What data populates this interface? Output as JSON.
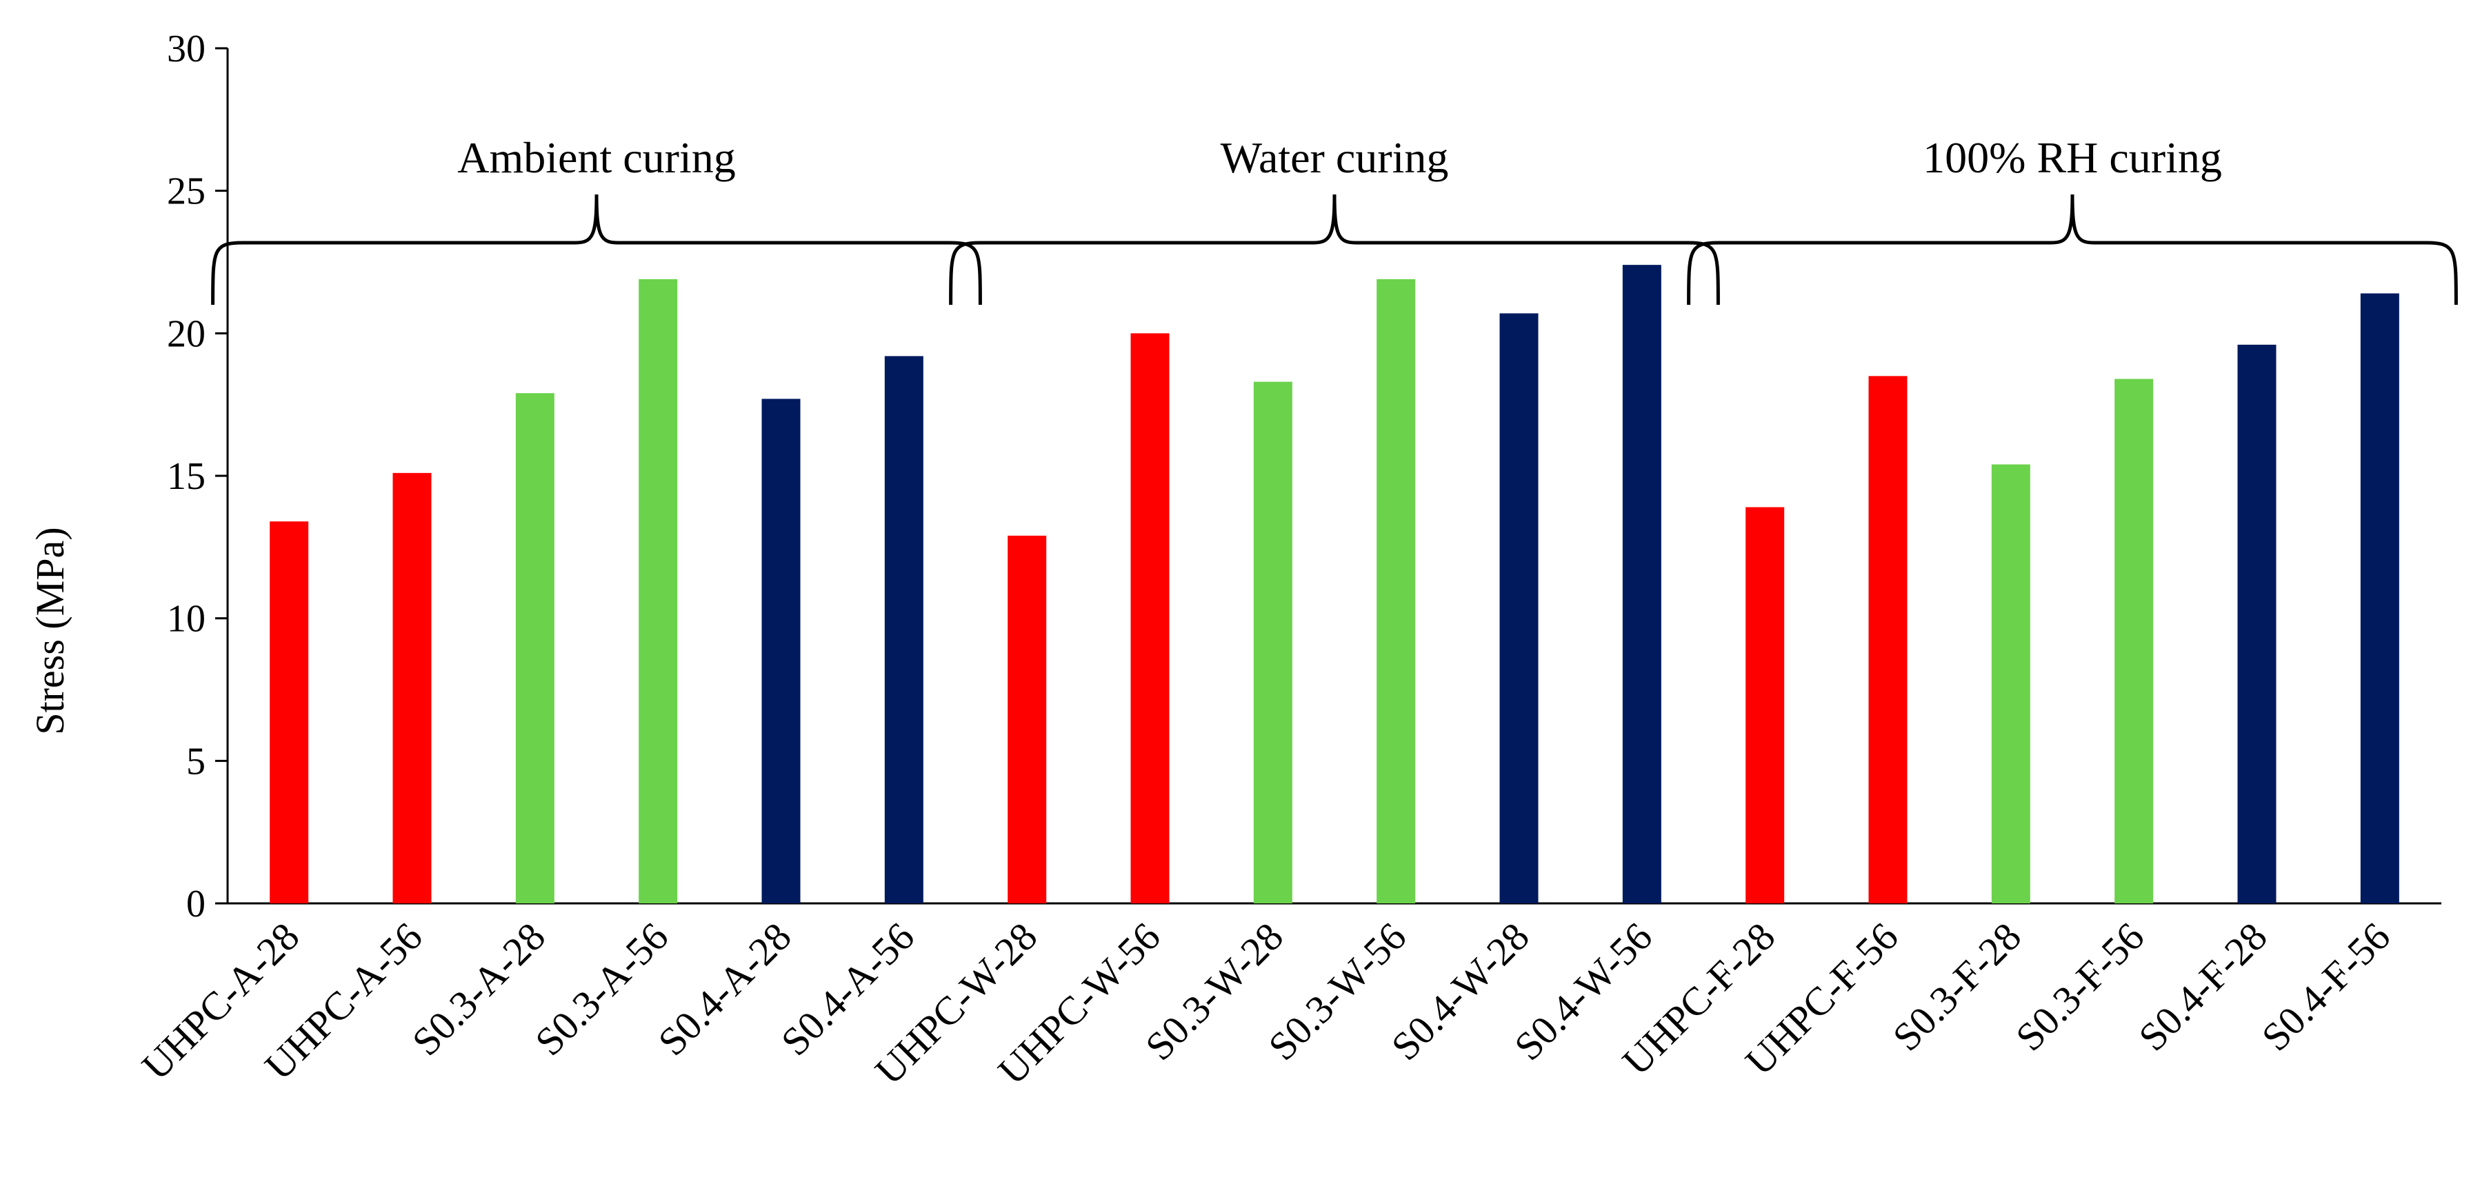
{
  "chart_data": {
    "type": "bar",
    "title": "",
    "xlabel": "",
    "ylabel": "Stress (MPa)",
    "ylim": [
      0,
      30
    ],
    "yticks": [
      0,
      5,
      10,
      15,
      20,
      25,
      30
    ],
    "grid": false,
    "categories": [
      "UHPC-A-28",
      "UHPC-A-56",
      "S0.3-A-28",
      "S0.3-A-56",
      "S0.4-A-28",
      "S0.4-A-56",
      "UHPC-W-28",
      "UHPC-W-56",
      "S0.3-W-28",
      "S0.3-W-56",
      "S0.4-W-28",
      "S0.4-W-56",
      "UHPC-F-28",
      "UHPC-F-56",
      "S0.3-F-28",
      "S0.3-F-56",
      "S0.4-F-28",
      "S0.4-F-56"
    ],
    "values": [
      13.4,
      15.1,
      17.9,
      21.9,
      17.7,
      19.2,
      12.9,
      20.0,
      18.3,
      21.9,
      20.7,
      22.4,
      13.9,
      18.5,
      15.4,
      18.4,
      19.6,
      21.4
    ],
    "bar_colors": [
      "#FF0000",
      "#FF0000",
      "#6BD24B",
      "#6BD24B",
      "#001A5E",
      "#001A5E",
      "#FF0000",
      "#FF0000",
      "#6BD24B",
      "#6BD24B",
      "#001A5E",
      "#001A5E",
      "#FF0000",
      "#FF0000",
      "#6BD24B",
      "#6BD24B",
      "#001A5E",
      "#001A5E"
    ],
    "groups": [
      {
        "label": "Ambient curing",
        "start": 0,
        "end": 5
      },
      {
        "label": "Water curing",
        "start": 6,
        "end": 11
      },
      {
        "label": "100% RH curing",
        "start": 12,
        "end": 17
      }
    ]
  }
}
